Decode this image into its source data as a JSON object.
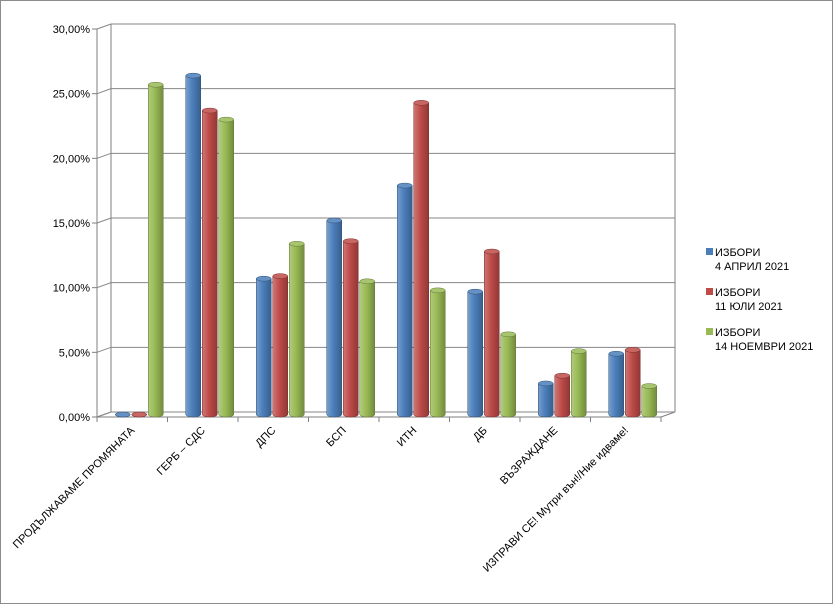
{
  "chart_data": {
    "type": "bar",
    "title": "",
    "xlabel": "",
    "ylabel": "",
    "ylim": [
      0,
      30
    ],
    "yticks": [
      "0,00%",
      "5,00%",
      "10,00%",
      "15,00%",
      "20,00%",
      "25,00%",
      "30,00%"
    ],
    "grid": true,
    "legend_position": "right",
    "categories": [
      "ПРОДЪЛЖАВАМЕ ПРОМЯНАТА",
      "ГЕРБ – СДС",
      "ДПС",
      "БСП",
      "ИТН",
      "ДБ",
      "ВЪЗРАЖДАНЕ",
      "ИЗПРАВИ СЕ! Мутри вън!/Ние идваме!"
    ],
    "series": [
      {
        "name": "ИЗБОРИ 4 АПРИЛ 2021",
        "legend_lines": [
          "ИЗБОРИ",
          "4 АПРИЛ 2021"
        ],
        "color": "#4a7ebb",
        "values": [
          0,
          26.2,
          10.5,
          15.0,
          17.7,
          9.5,
          2.4,
          4.7
        ]
      },
      {
        "name": "ИЗБОРИ 11 ЮЛИ 2021",
        "legend_lines": [
          "ИЗБОРИ",
          "11 ЮЛИ 2021"
        ],
        "color": "#be4b48",
        "values": [
          0,
          23.5,
          10.7,
          13.4,
          24.1,
          12.6,
          3.0,
          5.0
        ]
      },
      {
        "name": "ИЗБОРИ 14 НОЕМВРИ 2021",
        "legend_lines": [
          "ИЗБОРИ",
          "14 НОЕМВРИ 2021"
        ],
        "color": "#98b954",
        "values": [
          25.5,
          22.8,
          13.2,
          10.3,
          9.6,
          6.2,
          4.9,
          2.2
        ]
      }
    ]
  }
}
